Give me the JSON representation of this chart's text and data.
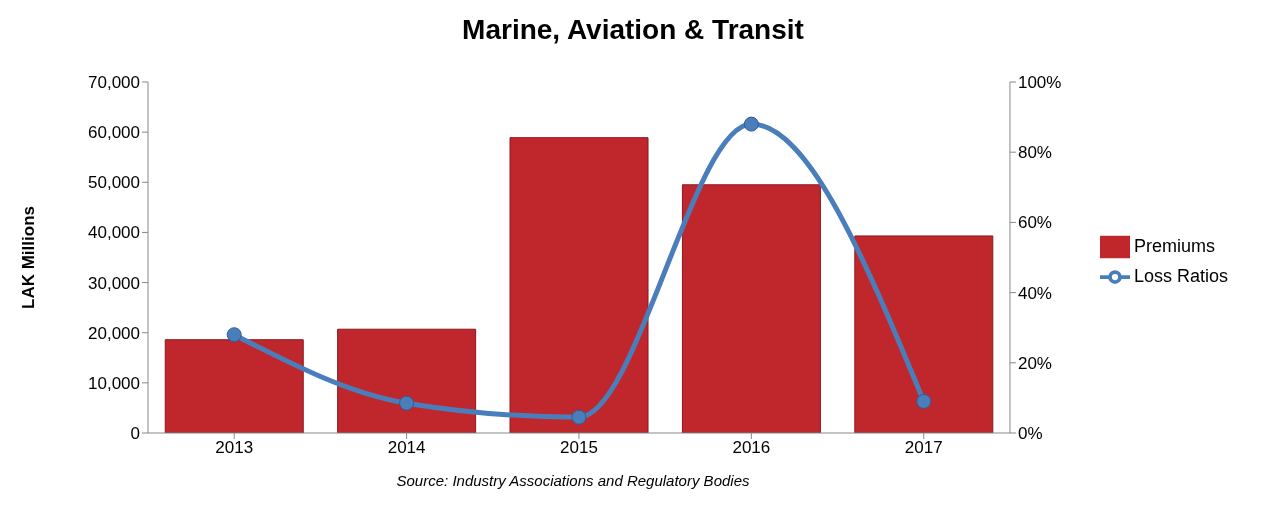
{
  "chart_data": {
    "type": "bar",
    "title": "Marine, Aviation & Transit",
    "ylabel": "LAK Millions",
    "annotations": [
      "Source: Industry Associations and Regulatory Bodies"
    ],
    "categories": [
      "2013",
      "2014",
      "2015",
      "2016",
      "2017"
    ],
    "series": [
      {
        "name": "Premiums",
        "color": "#c0272d",
        "values": [
          18600,
          20700,
          58900,
          49500,
          39300
        ]
      },
      {
        "name": "Loss Ratios",
        "type": "line",
        "axis": "y2",
        "color": "#4a7ebb",
        "values": [
          28,
          8.5,
          4.5,
          88,
          9
        ],
        "marker": "circle"
      }
    ],
    "ylim": [
      0,
      70000
    ],
    "yticks": [
      {
        "value": 0,
        "label": "0"
      },
      {
        "value": 10000,
        "label": "10,000"
      },
      {
        "value": 20000,
        "label": "20,000"
      },
      {
        "value": 30000,
        "label": "30,000"
      },
      {
        "value": 40000,
        "label": "40,000"
      },
      {
        "value": 50000,
        "label": "50,000"
      },
      {
        "value": 60000,
        "label": "60,000"
      },
      {
        "value": 70000,
        "label": "70,000"
      }
    ],
    "y2lim": [
      0,
      100
    ],
    "y2ticks": [
      {
        "value": 0,
        "label": "0%"
      },
      {
        "value": 20,
        "label": "20%"
      },
      {
        "value": 40,
        "label": "40%"
      },
      {
        "value": 60,
        "label": "60%"
      },
      {
        "value": 80,
        "label": "80%"
      },
      {
        "value": 100,
        "label": "100%"
      }
    ],
    "legend": "right",
    "grid": false,
    "line_style": "solid"
  }
}
